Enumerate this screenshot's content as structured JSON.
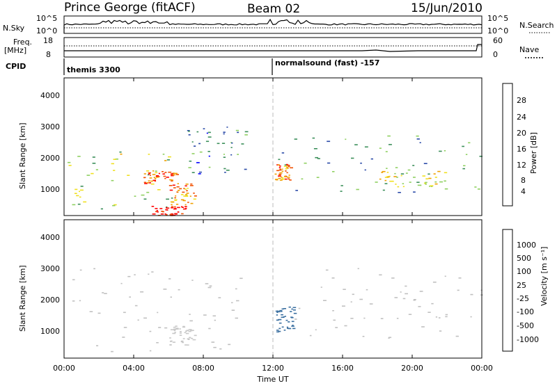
{
  "header": {
    "station": "Prince George (fitACF)",
    "beam": "Beam 02",
    "date": "15/Jun/2010"
  },
  "strip_panels": {
    "nsky_label": "N.Sky",
    "nsky_ticks": [
      "10^5",
      "10^0"
    ],
    "nsearch_label": "N.Search",
    "nsearch_ticks": [
      "10^5",
      "10^0"
    ],
    "freq_label_1": "Freq.",
    "freq_label_2": "[MHz]",
    "freq_ticks": [
      "18",
      "8"
    ],
    "nave_label": "Nave",
    "nave_ticks": [
      "60",
      "0"
    ],
    "cpid_label": "CPID",
    "cpid_1": "themis 3300",
    "cpid_2": "normalsound (fast) -157"
  },
  "x_axis": {
    "label": "Time UT",
    "ticks": [
      "00:00",
      "04:00",
      "08:00",
      "12:00",
      "16:00",
      "20:00",
      "00:00"
    ],
    "range_hours": [
      0,
      24
    ]
  },
  "power_panel": {
    "ylabel": "Slant Range [km]",
    "yticks": [
      "4000",
      "3000",
      "2000",
      "1000"
    ],
    "colorbar_title": "Power [dB]",
    "colorbar_ticks": [
      "28",
      "24",
      "20",
      "16",
      "12",
      "8",
      "4"
    ]
  },
  "velocity_panel": {
    "ylabel": "Slant Range [km]",
    "yticks": [
      "4000",
      "3000",
      "2000",
      "1000"
    ],
    "colorbar_title": "Velocity [m s⁻¹]",
    "colorbar_ticks": [
      "1000",
      "500",
      "100",
      "25",
      "-25",
      "-100",
      "-500",
      "-1000"
    ]
  },
  "colors": {
    "power_scale": [
      "#0000ff",
      "#2a4aa8",
      "#3b8f5a",
      "#8fd060",
      "#f0e020",
      "#f0a000",
      "#f05000",
      "#ff0000"
    ],
    "velocity_scale": [
      "#2040c0",
      "#3a6fa0",
      "#3aa040",
      "#70d040",
      "#c8c8c8",
      "#c8c8c8",
      "#f0d000",
      "#f08000",
      "#ff0000"
    ],
    "ground_scatter": "#c0c0c0"
  },
  "chart_data": [
    {
      "type": "heatmap",
      "title": "Power [dB]",
      "xlabel": "Time UT",
      "ylabel": "Slant Range [km]",
      "xlim": [
        0,
        24
      ],
      "ylim": [
        180,
        4500
      ],
      "zlim": [
        0,
        30
      ],
      "regions": [
        {
          "t": [
            0.1,
            6.5
          ],
          "r": [
            400,
            2200
          ],
          "value": 14
        },
        {
          "t": [
            4.5,
            6.5
          ],
          "r": [
            1200,
            1600
          ],
          "value": 24
        },
        {
          "t": [
            6,
            7.5
          ],
          "r": [
            500,
            1200
          ],
          "value": 22
        },
        {
          "t": [
            5,
            7
          ],
          "r": [
            200,
            500
          ],
          "value": 28
        },
        {
          "t": [
            7,
            10.5
          ],
          "r": [
            1500,
            3000
          ],
          "value": 8
        },
        {
          "t": [
            12.1,
            24
          ],
          "r": [
            900,
            2800
          ],
          "value": 10
        },
        {
          "t": [
            12.1,
            13
          ],
          "r": [
            1300,
            1800
          ],
          "value": 22
        },
        {
          "t": [
            17.5,
            22
          ],
          "r": [
            1100,
            1600
          ],
          "value": 16
        }
      ]
    },
    {
      "type": "heatmap",
      "title": "Velocity [m s-1]",
      "xlabel": "Time UT",
      "ylabel": "Slant Range [km]",
      "xlim": [
        0,
        24
      ],
      "ylim": [
        180,
        4500
      ],
      "zlim": [
        -1000,
        1000
      ],
      "regions": [
        {
          "t": [
            0.1,
            10.5
          ],
          "r": [
            400,
            3000
          ],
          "value": 0
        },
        {
          "t": [
            6,
            7.5
          ],
          "r": [
            600,
            1200
          ],
          "value": -150
        },
        {
          "t": [
            12.1,
            13.2
          ],
          "r": [
            1000,
            1800
          ],
          "value": 800
        },
        {
          "t": [
            13.2,
            24
          ],
          "r": [
            800,
            3000
          ],
          "value": 0
        }
      ]
    }
  ]
}
